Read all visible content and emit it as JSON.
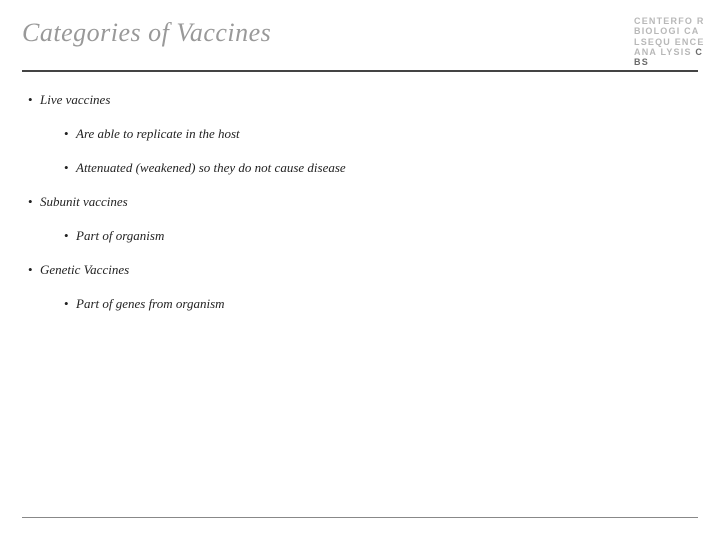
{
  "title": "Categories of Vaccines",
  "logo_lines": [
    "CENTERFO",
    "RBIOLOGI",
    "CALSEQU",
    "ENCEANA",
    "LYSIS"
  ],
  "logo_bold": "CBS",
  "bullets": {
    "b1": "Live vaccines",
    "b1a": "Are able to replicate in the host",
    "b1b": "Attenuated (weakened) so they do not cause disease",
    "b2": "Subunit vaccines",
    "b2a": "Part of organism",
    "b3": "Genetic Vaccines",
    "b3a": "Part of genes from organism"
  },
  "colors": {
    "title": "#999999",
    "text": "#222222",
    "hr_top": "#444444",
    "hr_bottom": "#888888",
    "logo_light": "#b8b8b8",
    "logo_dark": "#6a6a6a",
    "background": "#ffffff"
  },
  "fontsizes": {
    "title": 26,
    "body": 13,
    "logo": 9
  }
}
